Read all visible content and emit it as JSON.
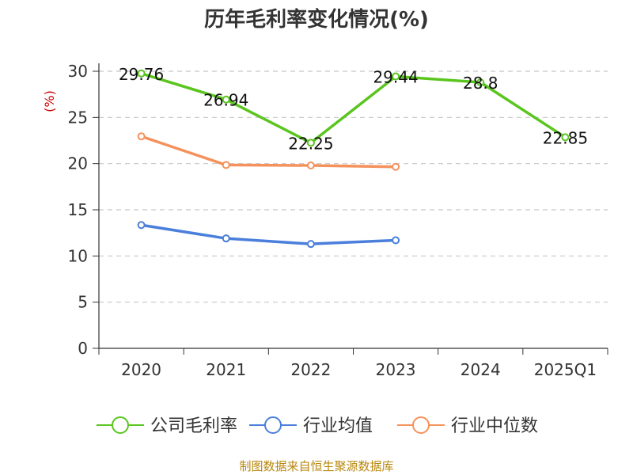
{
  "title": "历年毛利率变化情况(%)",
  "footer": "制图数据来自恒生聚源数据库",
  "chart_data": {
    "type": "line",
    "title": "历年毛利率变化情况(%)",
    "ylabel": "(%)",
    "xlabel": "",
    "ylim": [
      0,
      30
    ],
    "yticks": [
      "0",
      "5",
      "10",
      "15",
      "20",
      "25",
      "30"
    ],
    "categories": [
      "2020",
      "2021",
      "2022",
      "2023",
      "2024",
      "2025Q1"
    ],
    "grid": "horizontal-dashed",
    "legend": "bottom",
    "series": [
      {
        "name": "公司毛利率",
        "color": "#5bc51f",
        "values": [
          29.76,
          26.94,
          22.25,
          29.44,
          28.8,
          22.85
        ],
        "labels": [
          "29.76",
          "26.94",
          "22.25",
          "29.44",
          "28.8",
          "22.85"
        ]
      },
      {
        "name": "行业均值",
        "color": "#4a7fdb",
        "values": [
          13.35,
          11.9,
          11.3,
          11.7,
          null,
          null
        ]
      },
      {
        "name": "行业中位数",
        "color": "#f5915b",
        "values": [
          22.95,
          19.85,
          19.8,
          19.65,
          null,
          null
        ]
      }
    ]
  }
}
